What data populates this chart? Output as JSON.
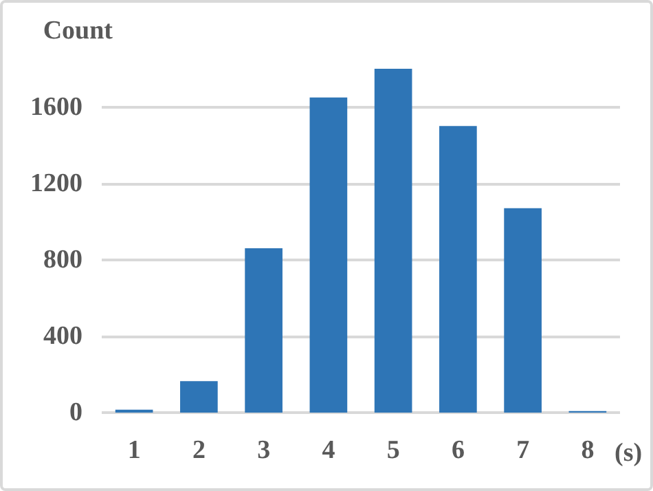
{
  "chart_data": {
    "type": "bar",
    "ylabel": "Count",
    "xlabel": "(s)",
    "categories": [
      "1",
      "2",
      "3",
      "4",
      "5",
      "6",
      "7",
      "8"
    ],
    "values": [
      15,
      165,
      860,
      1650,
      1800,
      1500,
      1070,
      8
    ],
    "color": "#2e75b6",
    "ylim": [
      0,
      1800
    ],
    "yticks": [
      0,
      400,
      800,
      1200,
      1600
    ],
    "grid": "y"
  }
}
